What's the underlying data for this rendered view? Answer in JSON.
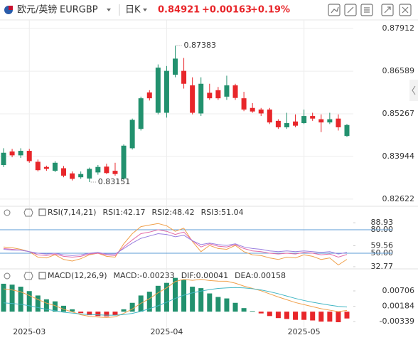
{
  "header": {
    "name": "欧元/英镑",
    "symbol": "EURGBP",
    "period": "日K",
    "price": "0.84921",
    "change": "+0.00163",
    "change_pct": "+0.19%"
  },
  "chart_data": [
    {
      "type": "candlestick",
      "categories": [
        null,
        null,
        null,
        "2025-03",
        null,
        null,
        null,
        null,
        null,
        null,
        null,
        null,
        null,
        null,
        null,
        null,
        null,
        null,
        null,
        "2025-04",
        null,
        null,
        null,
        null,
        null,
        null,
        null,
        null,
        null,
        null,
        null,
        null,
        null,
        null,
        null,
        "2025-05",
        null,
        null,
        null,
        null,
        null
      ],
      "open": [
        0.8368,
        0.841,
        0.8398,
        0.8412,
        0.8378,
        0.8362,
        0.835,
        0.8358,
        0.8342,
        0.833,
        0.8326,
        0.8345,
        0.8363,
        0.835,
        0.8326,
        0.842,
        0.848,
        0.8593,
        0.853,
        0.853,
        0.8648,
        0.866,
        0.8615,
        0.8528,
        0.8592,
        0.86,
        0.858,
        0.8615,
        0.8575,
        0.8545,
        0.854,
        0.854,
        0.8505,
        0.8485,
        0.8503,
        0.8498,
        0.852,
        0.851,
        0.85,
        0.8512,
        0.8458
      ],
      "high": [
        0.842,
        0.8418,
        0.842,
        0.8418,
        0.8385,
        0.8366,
        0.838,
        0.8365,
        0.8348,
        0.8348,
        0.836,
        0.8368,
        0.8372,
        0.8375,
        0.8432,
        0.8512,
        0.858,
        0.86,
        0.868,
        0.8675,
        0.87383,
        0.87,
        0.864,
        0.864,
        0.862,
        0.861,
        0.8645,
        0.862,
        0.8595,
        0.856,
        0.8545,
        0.8545,
        0.851,
        0.853,
        0.8525,
        0.854,
        0.853,
        0.8525,
        0.853,
        0.8525,
        0.8495
      ],
      "low": [
        0.8362,
        0.8392,
        0.839,
        0.8375,
        0.8348,
        0.835,
        0.8346,
        0.833,
        0.832,
        0.8325,
        0.83151,
        0.8338,
        0.834,
        0.8335,
        0.8322,
        0.8416,
        0.8475,
        0.8568,
        0.8525,
        0.8515,
        0.864,
        0.8605,
        0.8525,
        0.852,
        0.857,
        0.857,
        0.857,
        0.857,
        0.8535,
        0.853,
        0.852,
        0.8495,
        0.848,
        0.848,
        0.8485,
        0.8495,
        0.8505,
        0.847,
        0.8495,
        0.8475,
        0.8455
      ],
      "close": [
        0.8406,
        0.8398,
        0.8412,
        0.838,
        0.8352,
        0.8356,
        0.8375,
        0.8335,
        0.8325,
        0.834,
        0.8356,
        0.8362,
        0.8343,
        0.834,
        0.8428,
        0.8508,
        0.8575,
        0.8575,
        0.867,
        0.866,
        0.8698,
        0.862,
        0.853,
        0.862,
        0.8575,
        0.8575,
        0.8615,
        0.8576,
        0.854,
        0.8534,
        0.8528,
        0.85,
        0.8485,
        0.8498,
        0.849,
        0.852,
        0.8512,
        0.85,
        0.851,
        0.8485,
        0.84921
      ],
      "up_color": "#22916e",
      "down_color": "#e8262a",
      "ylim": [
        0.824,
        0.8818
      ],
      "yticks": [
        0.87912,
        0.86589,
        0.85267,
        0.83944,
        0.82622
      ],
      "grid": true
    },
    {
      "type": "line",
      "title": "RSI(7,14,21)",
      "series": [
        {
          "name": "RSI1:42.17",
          "color": "#f0a04b",
          "values": [
            58,
            57,
            55,
            52,
            45,
            44,
            48,
            42,
            40,
            43,
            48,
            50,
            46,
            45,
            62,
            75,
            84,
            86,
            88,
            85,
            78,
            82,
            65,
            52,
            60,
            56,
            55,
            60,
            52,
            48,
            47,
            44,
            42,
            45,
            44,
            48,
            46,
            42,
            44,
            35,
            42.17
          ]
        },
        {
          "name": "RSI2:48.42",
          "color": "#e46ba6",
          "values": [
            56,
            55,
            54,
            52,
            48,
            47,
            49,
            46,
            45,
            46,
            49,
            50,
            48,
            47,
            58,
            67,
            75,
            77,
            80,
            78,
            74,
            77,
            66,
            58,
            62,
            59,
            58,
            61,
            56,
            53,
            52,
            50,
            49,
            50,
            49,
            51,
            50,
            48,
            49,
            45,
            48.42
          ]
        },
        {
          "name": "RSI3:51.04",
          "color": "#9a7fe0",
          "values": [
            55,
            54,
            54,
            52,
            50,
            49,
            50,
            48,
            47,
            48,
            50,
            51,
            49,
            49,
            56,
            63,
            69,
            72,
            75,
            74,
            71,
            73,
            66,
            61,
            63,
            61,
            60,
            62,
            58,
            56,
            55,
            53,
            52,
            53,
            52,
            53,
            52,
            51,
            52,
            49,
            51.04
          ]
        }
      ],
      "ylim": [
        30,
        90
      ],
      "yticks": [
        88.93,
        {
          "value": 80,
          "label": "80.00"
        },
        59.56,
        {
          "value": 50,
          "label": "50.00"
        },
        32.77
      ],
      "ref_lines": [
        80,
        50
      ],
      "ref_color": "#5b9bd5"
    },
    {
      "type": "macd",
      "title": "MACD(12,26,9)",
      "series": [
        {
          "name": "MACD:-0.00233",
          "color": "#9c83d9",
          "values": [
            0.0095,
            0.0092,
            0.0085,
            0.007,
            0.0055,
            0.0042,
            0.0035,
            0.002,
            0.0008,
            -0.0005,
            -0.0012,
            -0.0015,
            -0.0016,
            -0.0012,
            0.0008,
            0.003,
            0.0055,
            0.0068,
            0.0088,
            0.0098,
            0.0115,
            0.0108,
            0.0085,
            0.008,
            0.0062,
            0.005,
            0.0045,
            0.003,
            0.0012,
            0.0002,
            -0.0006,
            -0.0015,
            -0.0022,
            -0.0025,
            -0.0028,
            -0.0028,
            -0.003,
            -0.0034,
            -0.0034,
            -0.0036,
            -0.00233
          ]
        },
        {
          "name": "DIF:0.00041",
          "color": "#f0a04b",
          "values": [
            0.00775,
            0.0074,
            0.00675,
            0.0055,
            0.00415,
            0.0029,
            0.00205,
            0.0008,
            -0.0001,
            -0.00105,
            -0.0016,
            -0.00185,
            -0.002,
            -0.0018,
            -0.0006,
            0.0009,
            0.00285,
            0.0044,
            0.0064,
            0.0081,
            0.01025,
            0.011,
            0.01065,
            0.011,
            0.0106,
            0.0104,
            0.01035,
            0.0097,
            0.0087,
            0.0079,
            0.0071,
            0.00605,
            0.005,
            0.00405,
            0.0031,
            0.0024,
            0.0017,
            0.001,
            0.0005,
            0.0,
            0.00041
          ]
        },
        {
          "name": "DEA:0.00158",
          "color": "#41b6c4",
          "values": [
            0.003,
            0.0028,
            0.0025,
            0.002,
            0.0014,
            0.0008,
            0.0003,
            -0.0002,
            -0.0005,
            -0.0008,
            -0.001,
            -0.0011,
            -0.0012,
            -0.0012,
            -0.001,
            -0.0006,
            0.0001,
            0.001,
            0.002,
            0.0032,
            0.0045,
            0.0056,
            0.0064,
            0.007,
            0.0075,
            0.0079,
            0.0081,
            0.0082,
            0.0081,
            0.0078,
            0.0074,
            0.0068,
            0.0061,
            0.0053,
            0.0045,
            0.0038,
            0.0032,
            0.0027,
            0.0022,
            0.0018,
            0.00158
          ]
        }
      ],
      "up_color": "#22916e",
      "down_color": "#e8262a",
      "ylim": [
        -0.0053,
        0.0136
      ],
      "yticks": [
        0.00706,
        0.00184,
        -0.00339
      ]
    }
  ]
}
